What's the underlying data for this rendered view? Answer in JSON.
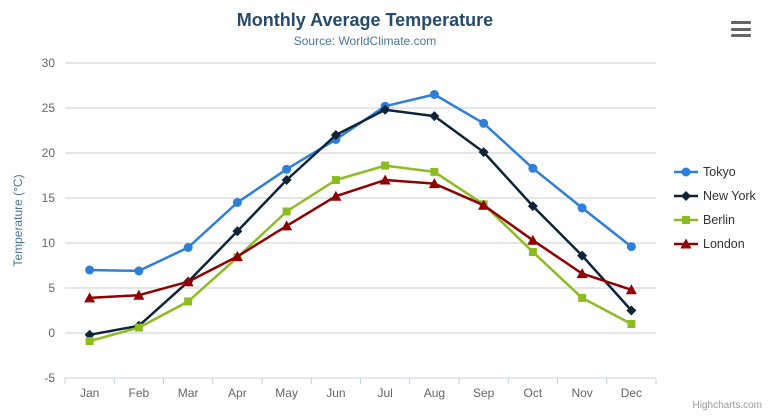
{
  "header": {
    "title": "Monthly Average Temperature",
    "subtitle": "Source: WorldClimate.com"
  },
  "chart_data": {
    "type": "line",
    "categories": [
      "Jan",
      "Feb",
      "Mar",
      "Apr",
      "May",
      "Jun",
      "Jul",
      "Aug",
      "Sep",
      "Oct",
      "Nov",
      "Dec"
    ],
    "series": [
      {
        "name": "Tokyo",
        "color": "#2f7ed8",
        "marker": "circle",
        "values": [
          7.0,
          6.9,
          9.5,
          14.5,
          18.2,
          21.5,
          25.2,
          26.5,
          23.3,
          18.3,
          13.9,
          9.6
        ]
      },
      {
        "name": "New York",
        "color": "#0d233a",
        "marker": "diamond",
        "values": [
          -0.2,
          0.8,
          5.7,
          11.3,
          17.0,
          22.0,
          24.8,
          24.1,
          20.1,
          14.1,
          8.6,
          2.5
        ]
      },
      {
        "name": "Berlin",
        "color": "#8bbc21",
        "marker": "square",
        "values": [
          -0.9,
          0.6,
          3.5,
          8.4,
          13.5,
          17.0,
          18.6,
          17.9,
          14.3,
          9.0,
          3.9,
          1.0
        ]
      },
      {
        "name": "London",
        "color": "#910000",
        "marker": "triangle",
        "values": [
          3.9,
          4.2,
          5.7,
          8.5,
          11.9,
          15.2,
          17.0,
          16.6,
          14.2,
          10.3,
          6.6,
          4.8
        ]
      }
    ],
    "title": "Monthly Average Temperature",
    "subtitle": "Source: WorldClimate.com",
    "xlabel": "",
    "ylabel": "Temperature (°C)",
    "ylim": [
      -5,
      30
    ],
    "ytick_interval": 5,
    "grid": true,
    "legend_position": "right"
  },
  "colors": {
    "title_text": "#274b6d",
    "subtitle_text": "#4d759e",
    "axis_title_text": "#4d759e",
    "tick_label_text": "#666666",
    "grid_line": "#cccccc",
    "axis_line": "#c0d0e0",
    "legend_text": "#333333"
  },
  "export_menu": {
    "icon": "hamburger-icon"
  },
  "credits": {
    "label": "Highcharts.com"
  }
}
